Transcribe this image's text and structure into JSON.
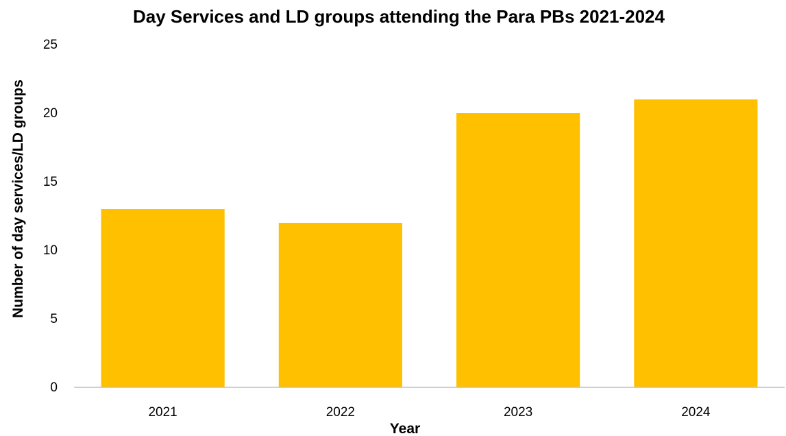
{
  "chart_data": {
    "type": "bar",
    "title": "Day Services and LD groups attending the Para PBs 2021-2024",
    "xlabel": "Year",
    "ylabel": "Number of day services/LD groups",
    "categories": [
      "2021",
      "2022",
      "2023",
      "2024"
    ],
    "values": [
      13,
      12,
      20,
      21
    ],
    "ylim": [
      0,
      25
    ],
    "yticks": [
      0,
      5,
      10,
      15,
      20,
      25
    ],
    "grid": false,
    "legend": "none",
    "bar_color": "#FFC000"
  }
}
